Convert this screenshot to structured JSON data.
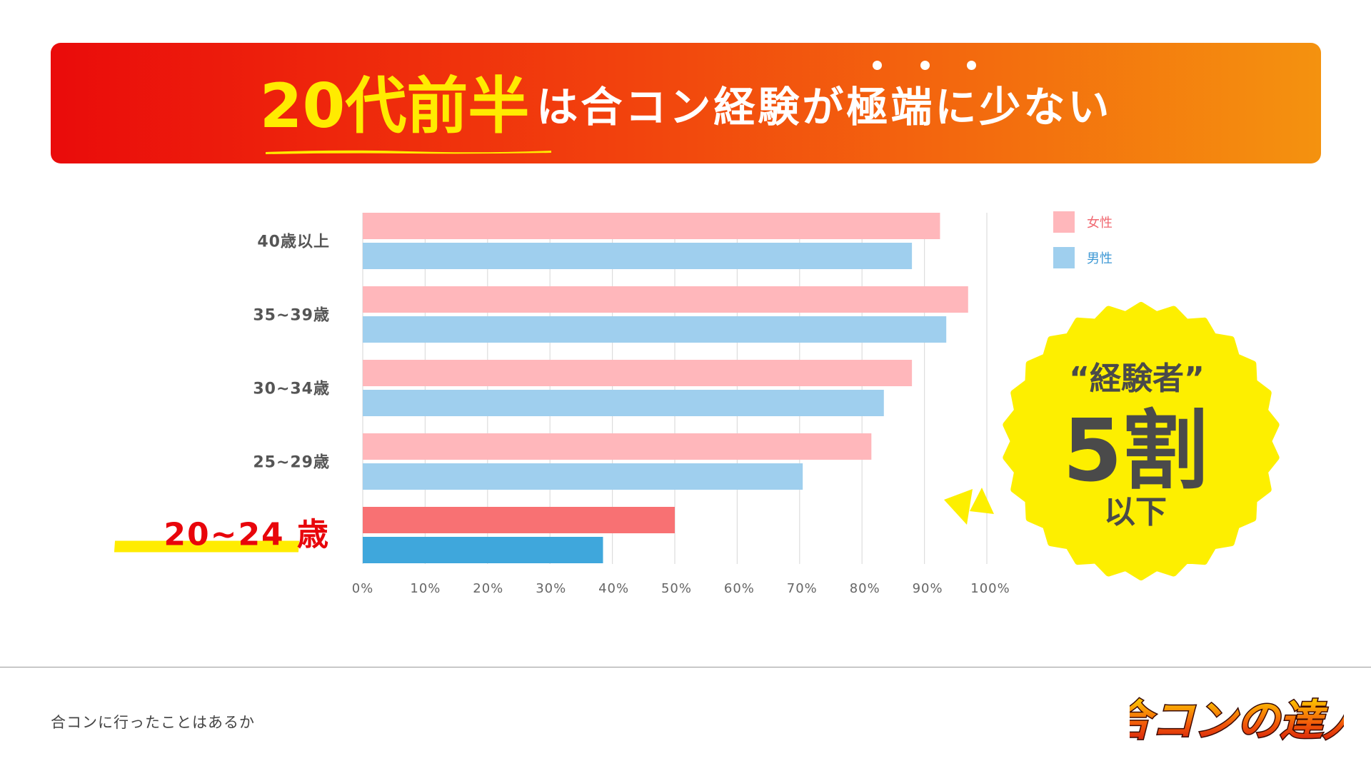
{
  "header": {
    "title_accent": "20代前半",
    "title_rest": "は合コン経験が極端に少ない"
  },
  "legend": {
    "items": [
      {
        "label": "女性",
        "color": "#ffb7bb",
        "text_color": "#f06870"
      },
      {
        "label": "男性",
        "color": "#9fcfee",
        "text_color": "#3d98d4"
      }
    ],
    "placement": "top-right"
  },
  "callout": {
    "line1": "“経験者”",
    "line2": "5割",
    "line3": "以下",
    "color": "#fdef00"
  },
  "caption": "合コンに行ったことはあるか",
  "logo": {
    "text": "合コンの達人"
  },
  "colors": {
    "female": "#ffb7bb",
    "male": "#9fcfee",
    "female_highlight": "#f87173",
    "male_highlight": "#3fa7dc",
    "highlight_label": "#e8050b",
    "highlight_marker": "#ffec00"
  },
  "chart_data": {
    "type": "bar",
    "orientation": "horizontal",
    "categories": [
      "40歳以上",
      "35~39歳",
      "30~34歳",
      "25~29歳",
      "20~24 歳"
    ],
    "highlight_category": "20~24 歳",
    "series": [
      {
        "name": "女性",
        "values": [
          92.5,
          97,
          88,
          81.5,
          50
        ]
      },
      {
        "name": "男性",
        "values": [
          88,
          93.5,
          83.5,
          70.5,
          38.5
        ]
      }
    ],
    "xlim": [
      0,
      100
    ],
    "x_ticks": [
      "0%",
      "10%",
      "20%",
      "30%",
      "40%",
      "50%",
      "60%",
      "70%",
      "80%",
      "90%",
      "100%"
    ],
    "grid": true,
    "legend": "top-right"
  }
}
